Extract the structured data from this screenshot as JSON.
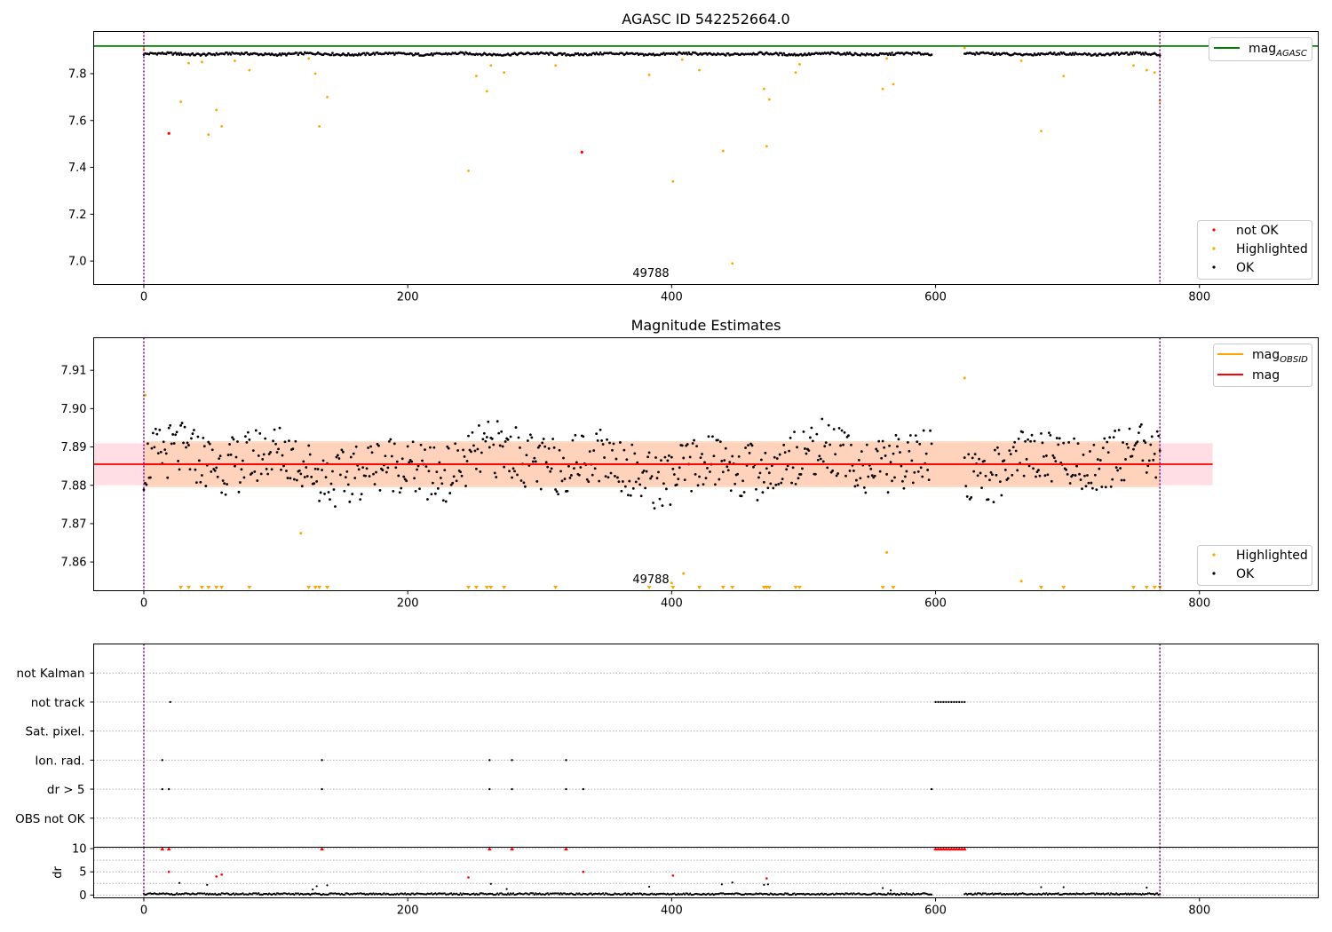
{
  "colors": {
    "ok": "#000000",
    "highlighted": "#ffa500",
    "not_ok": "#ff0000",
    "agasc_line": "#008000",
    "mag_line": "#ff0000",
    "mag_obsid_line": "#ffa500",
    "obs_boundary": "#800080",
    "band_outer": "#ffc0cb",
    "band_inner": "#ffcfb0"
  },
  "chart_data": [
    {
      "type": "scatter",
      "title": "AGASC ID 542252664.0",
      "xlim": [
        -38,
        890
      ],
      "ylim": [
        6.9,
        7.98
      ],
      "xticks": [
        "0",
        "200",
        "400",
        "600",
        "800"
      ],
      "yticks": [
        "7.0",
        "7.2",
        "7.4",
        "7.6",
        "7.8"
      ],
      "annotation": "49788",
      "obs_boundaries": [
        0,
        770
      ],
      "mag_agasc": 7.918,
      "legend_lines": [
        {
          "label": "mag",
          "sub": "AGASC"
        }
      ],
      "legend_points": [
        "not OK",
        "Highlighted",
        "OK"
      ],
      "ok_segments": [
        {
          "start": 0,
          "end": 597,
          "base": 7.884
        },
        {
          "start": 622,
          "end": 770,
          "base": 7.884
        }
      ],
      "highlighted": [
        [
          0,
          7.905
        ],
        [
          28,
          7.68
        ],
        [
          34,
          7.845
        ],
        [
          44,
          7.85
        ],
        [
          49,
          7.54
        ],
        [
          55,
          7.645
        ],
        [
          59,
          7.575
        ],
        [
          69,
          7.855
        ],
        [
          80,
          7.815
        ],
        [
          125,
          7.865
        ],
        [
          130,
          7.8
        ],
        [
          133,
          7.575
        ],
        [
          139,
          7.7
        ],
        [
          246,
          7.385
        ],
        [
          252,
          7.79
        ],
        [
          260,
          7.725
        ],
        [
          263,
          7.835
        ],
        [
          273,
          7.805
        ],
        [
          312,
          7.835
        ],
        [
          383,
          7.795
        ],
        [
          401,
          7.34
        ],
        [
          408,
          7.86
        ],
        [
          421,
          7.815
        ],
        [
          439,
          7.47
        ],
        [
          446,
          6.99
        ],
        [
          470,
          7.735
        ],
        [
          472,
          7.49
        ],
        [
          474,
          7.69
        ],
        [
          494,
          7.805
        ],
        [
          497,
          7.84
        ],
        [
          560,
          7.735
        ],
        [
          563,
          7.865
        ],
        [
          568,
          7.755
        ],
        [
          622,
          7.91
        ],
        [
          665,
          7.855
        ],
        [
          680,
          7.555
        ],
        [
          697,
          7.79
        ],
        [
          750,
          7.835
        ],
        [
          760,
          7.815
        ],
        [
          766,
          7.805
        ],
        [
          770,
          7.685
        ]
      ],
      "not_ok": [
        [
          19,
          7.545
        ],
        [
          332,
          7.465
        ]
      ]
    },
    {
      "type": "scatter",
      "title": "Magnitude Estimates",
      "xlim": [
        -38,
        890
      ],
      "ylim": [
        7.8525,
        7.9185
      ],
      "xticks": [
        "0",
        "200",
        "400",
        "600",
        "800"
      ],
      "yticks": [
        "7.86",
        "7.87",
        "7.88",
        "7.89",
        "7.90",
        "7.91"
      ],
      "annotation": "49788",
      "obs_boundaries": [
        0,
        770
      ],
      "mag": 7.8855,
      "band_outer": [
        7.88,
        7.891
      ],
      "band_inner": [
        7.8795,
        7.8915
      ],
      "band_x": [
        -38,
        810
      ],
      "mag_obsid_x": [
        0,
        770
      ],
      "legend_lines": [
        {
          "label": "mag",
          "sub": "OBSID",
          "color_key": "mag_obsid_line"
        },
        {
          "label": "mag",
          "sub": "",
          "color_key": "mag_line"
        }
      ],
      "legend_points": [
        "Highlighted",
        "OK"
      ],
      "ok_segments": [
        {
          "start": 0,
          "end": 597,
          "base": 7.8855
        },
        {
          "start": 622,
          "end": 770,
          "base": 7.8855
        }
      ],
      "highlighted": [
        [
          1,
          7.9035
        ],
        [
          119,
          7.8675
        ],
        [
          400,
          7.8545
        ],
        [
          409,
          7.857
        ],
        [
          563,
          7.8625
        ],
        [
          622,
          7.908
        ],
        [
          665,
          7.855
        ]
      ],
      "below_range_x": [
        28,
        34,
        44,
        49,
        55,
        59,
        80,
        125,
        130,
        133,
        139,
        246,
        252,
        260,
        263,
        273,
        312,
        383,
        401,
        421,
        439,
        446,
        470,
        472,
        474,
        494,
        497,
        560,
        568,
        680,
        697,
        750,
        760,
        766,
        770
      ]
    },
    {
      "type": "scatter",
      "title": "",
      "xlim": [
        -38,
        890
      ],
      "categories": [
        "not Kalman",
        "not track",
        "Sat. pixel.",
        "Ion. rad.",
        "dr > 5",
        "OBS not OK"
      ],
      "flags": {
        "not track": [
          20,
          600,
          602,
          604,
          606,
          608,
          610,
          612,
          614,
          616,
          618,
          620,
          622
        ],
        "Ion. rad.": [
          14,
          135,
          262,
          279,
          320
        ],
        "dr > 5": [
          14,
          19,
          135,
          262,
          279,
          320,
          333,
          597
        ]
      },
      "obs_boundaries": [
        0,
        770
      ]
    },
    {
      "type": "scatter",
      "title": "",
      "ylabel": "dr",
      "xlim": [
        -38,
        890
      ],
      "ylim": [
        -0.6,
        10.3
      ],
      "xticks": [
        "0",
        "200",
        "400",
        "600",
        "800"
      ],
      "yticks": [
        "0",
        "5",
        "10"
      ],
      "obs_boundaries": [
        0,
        770
      ],
      "ok_segments": [
        {
          "start": 0,
          "end": 597
        },
        {
          "start": 622,
          "end": 770
        }
      ],
      "scattered_ok": [
        [
          27,
          2.6
        ],
        [
          48,
          2.2
        ],
        [
          128,
          1.2
        ],
        [
          131,
          1.9
        ],
        [
          139,
          2.1
        ],
        [
          263,
          2.4
        ],
        [
          275,
          1.3
        ],
        [
          383,
          1.8
        ],
        [
          438,
          2.3
        ],
        [
          446,
          2.7
        ],
        [
          470,
          2.2
        ],
        [
          473,
          2.3
        ],
        [
          560,
          1.5
        ],
        [
          566,
          1.0
        ],
        [
          680,
          1.7
        ],
        [
          697,
          1.7
        ],
        [
          760,
          1.6
        ]
      ],
      "red_scatter": [
        [
          19,
          5.0
        ],
        [
          55,
          4.0
        ],
        [
          59,
          4.4
        ],
        [
          246,
          3.8
        ],
        [
          333,
          5.0
        ],
        [
          401,
          4.2
        ],
        [
          472,
          3.6
        ]
      ],
      "red_triangles": [
        14,
        19,
        135,
        262,
        279,
        320,
        600,
        602,
        604,
        606,
        608,
        610,
        612,
        614,
        616,
        618,
        620,
        622
      ]
    }
  ]
}
